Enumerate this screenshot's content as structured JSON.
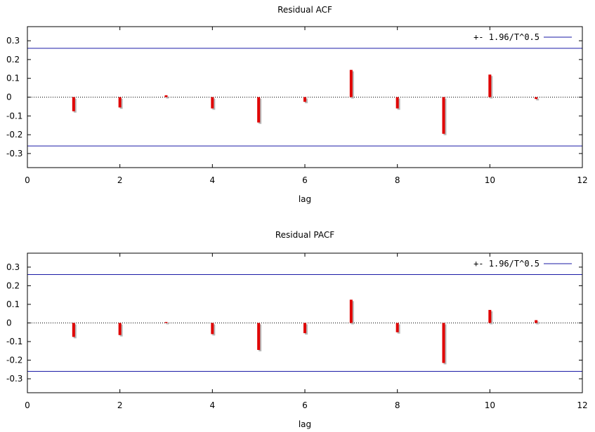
{
  "chart_data": [
    {
      "type": "bar",
      "title": "Residual ACF",
      "xlabel": "lag",
      "ylabel": "",
      "xlim": [
        0,
        12
      ],
      "ylim": [
        -0.375,
        0.375
      ],
      "xticks": [
        "0",
        "2",
        "4",
        "6",
        "8",
        "10",
        "12"
      ],
      "yticks": [
        "-0.3",
        "-0.2",
        "-0.1",
        "0",
        "0.1",
        "0.2",
        "0.3"
      ],
      "legend_label": "+- 1.96/T^0.5",
      "legend_position": "top-right",
      "confidence_band": 0.26,
      "x": [
        1,
        2,
        3,
        4,
        5,
        6,
        7,
        8,
        9,
        10,
        11
      ],
      "values": [
        -0.075,
        -0.055,
        0.01,
        -0.06,
        -0.135,
        -0.025,
        0.145,
        -0.06,
        -0.195,
        0.12,
        -0.01
      ],
      "bar_color": "#e00000",
      "band_color": "#1a1aa6"
    },
    {
      "type": "bar",
      "title": "Residual PACF",
      "xlabel": "lag",
      "ylabel": "",
      "xlim": [
        0,
        12
      ],
      "ylim": [
        -0.375,
        0.375
      ],
      "xticks": [
        "0",
        "2",
        "4",
        "6",
        "8",
        "10",
        "12"
      ],
      "yticks": [
        "-0.3",
        "-0.2",
        "-0.1",
        "0",
        "0.1",
        "0.2",
        "0.3"
      ],
      "legend_label": "+- 1.96/T^0.5",
      "legend_position": "top-right",
      "confidence_band": 0.26,
      "x": [
        1,
        2,
        3,
        4,
        5,
        6,
        7,
        8,
        9,
        10,
        11
      ],
      "values": [
        -0.075,
        -0.065,
        0.005,
        -0.06,
        -0.145,
        -0.055,
        0.125,
        -0.05,
        -0.215,
        0.07,
        0.015
      ],
      "bar_color": "#e00000",
      "band_color": "#1a1aa6"
    }
  ]
}
